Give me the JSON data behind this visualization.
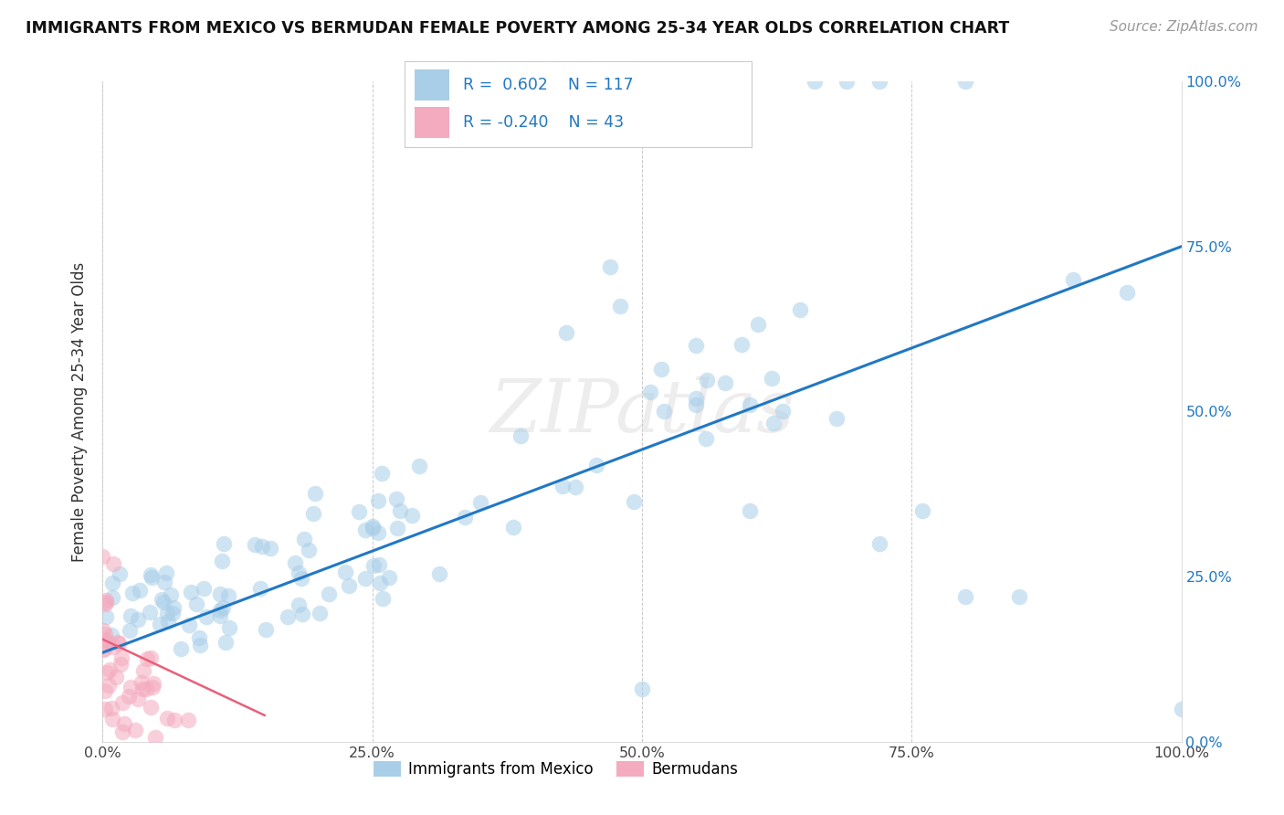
{
  "title": "IMMIGRANTS FROM MEXICO VS BERMUDAN FEMALE POVERTY AMONG 25-34 YEAR OLDS CORRELATION CHART",
  "source": "Source: ZipAtlas.com",
  "ylabel": "Female Poverty Among 25-34 Year Olds",
  "xlim": [
    0,
    1.0
  ],
  "ylim": [
    0,
    1.0
  ],
  "xticks": [
    0.0,
    0.25,
    0.5,
    0.75,
    1.0
  ],
  "yticks": [
    0.0,
    0.25,
    0.5,
    0.75,
    1.0
  ],
  "xticklabels": [
    "0.0%",
    "25.0%",
    "50.0%",
    "75.0%",
    "100.0%"
  ],
  "yticklabels": [
    "0.0%",
    "25.0%",
    "50.0%",
    "75.0%",
    "100.0%"
  ],
  "blue_color": "#A8CEE8",
  "pink_color": "#F4AABF",
  "blue_line_color": "#2178C4",
  "pink_line_color": "#E8607A",
  "legend_label1": "Immigrants from Mexico",
  "legend_label2": "Bermudans",
  "R_blue": 0.602,
  "N_blue": 117,
  "R_pink": -0.24,
  "N_pink": 43,
  "watermark": "ZIPatlas",
  "blue_line_x0": 0.0,
  "blue_line_y0": 0.135,
  "blue_line_x1": 1.0,
  "blue_line_y1": 0.75,
  "pink_line_x0": 0.0,
  "pink_line_y0": 0.155,
  "pink_line_x1": 0.15,
  "pink_line_y1": 0.04
}
